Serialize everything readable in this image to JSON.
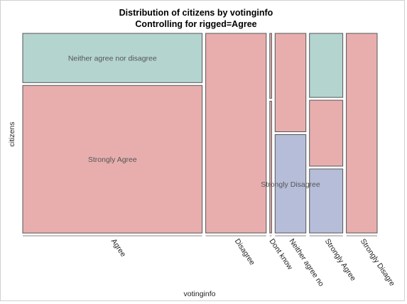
{
  "chart_data": {
    "type": "mosaic",
    "title": "Distribution of citizens by votinginfo",
    "subtitle": "Controlling for rigged=Agree",
    "xlabel": "votinginfo",
    "ylabel": "citizens",
    "x_categories": [
      "Agree",
      "Disagree",
      "Dont know",
      "Neither agree no",
      "Strongly Agree",
      "Strongly Disagre"
    ],
    "x_widths": [
      0.495,
      0.167,
      0.005,
      0.085,
      0.092,
      0.085
    ],
    "segment_labels": [
      "Neither agree nor disagree",
      "Strongly Disagree",
      "Strongly Agree"
    ],
    "colors": {
      "Neither agree nor disagree": "#b4d4d0",
      "Strongly Disagree": "#b6bdd8",
      "Strongly Agree": "#e8aeae"
    },
    "segments": [
      [
        {
          "label": "Neither agree nor disagree",
          "share": 0.25
        },
        {
          "label": "Strongly Agree",
          "share": 0.75
        }
      ],
      [
        {
          "label": "Strongly Agree",
          "share": 1.0
        }
      ],
      [
        {
          "label": "Strongly Agree",
          "share": 0.33
        },
        {
          "label": "Strongly Agree",
          "share": 0.67
        }
      ],
      [
        {
          "label": "Strongly Agree",
          "share": 0.5
        },
        {
          "label": "Strongly Disagree",
          "share": 0.5
        }
      ],
      [
        {
          "label": "Neither agree nor disagree",
          "share": 0.33
        },
        {
          "label": "Strongly Agree",
          "share": 0.34
        },
        {
          "label": "Strongly Disagree",
          "share": 0.33
        }
      ],
      [
        {
          "label": "Strongly Agree",
          "share": 1.0
        }
      ]
    ],
    "cell_labels": [
      {
        "text": "Neither agree nor disagree",
        "column": 0,
        "segment": 0
      },
      {
        "text": "Strongly Agree",
        "column": 0,
        "segment": 1
      },
      {
        "text": "Strongly Disagree",
        "column": 3,
        "segment": 1
      }
    ]
  }
}
